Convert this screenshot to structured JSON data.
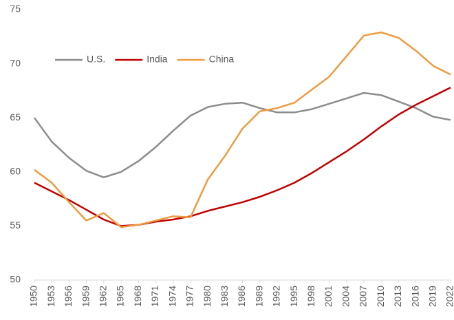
{
  "chart_data": {
    "type": "line",
    "x": [
      1950,
      1953,
      1956,
      1959,
      1962,
      1965,
      1968,
      1971,
      1974,
      1977,
      1980,
      1983,
      1986,
      1989,
      1992,
      1995,
      1998,
      2001,
      2004,
      2007,
      2010,
      2013,
      2016,
      2019,
      2022
    ],
    "series": [
      {
        "name": "U.S.",
        "color": "#8c8c8c",
        "values": [
          65.0,
          62.8,
          61.3,
          60.1,
          59.5,
          60.0,
          61.0,
          62.3,
          63.8,
          65.2,
          66.0,
          66.3,
          66.4,
          65.9,
          65.5,
          65.5,
          65.8,
          66.3,
          66.8,
          67.3,
          67.1,
          66.5,
          65.9,
          65.1,
          64.8
        ]
      },
      {
        "name": "India",
        "color": "#c00000",
        "values": [
          59.0,
          58.2,
          57.4,
          56.5,
          55.6,
          55.0,
          55.1,
          55.4,
          55.6,
          55.9,
          56.4,
          56.8,
          57.2,
          57.7,
          58.3,
          59.0,
          59.9,
          60.9,
          61.9,
          63.0,
          64.2,
          65.3,
          66.2,
          67.0,
          67.8
        ]
      },
      {
        "name": "China",
        "color": "#ed9b40",
        "values": [
          60.2,
          59.0,
          57.2,
          55.5,
          56.2,
          54.9,
          55.1,
          55.5,
          55.9,
          55.8,
          59.3,
          61.5,
          64.0,
          65.6,
          65.9,
          66.4,
          67.6,
          68.8,
          70.7,
          72.6,
          72.9,
          72.4,
          71.2,
          69.8,
          69.0
        ]
      }
    ],
    "xlim": [
      1950,
      2022
    ],
    "xticks": [
      1950,
      1953,
      1956,
      1959,
      1962,
      1965,
      1968,
      1971,
      1974,
      1977,
      1980,
      1983,
      1986,
      1989,
      1992,
      1995,
      1998,
      2001,
      2004,
      2007,
      2010,
      2013,
      2016,
      2019,
      2022
    ],
    "ylim": [
      50,
      75
    ],
    "yticks": [
      50,
      55,
      60,
      65,
      70,
      75
    ],
    "grid": false,
    "legend": "upper-left"
  }
}
